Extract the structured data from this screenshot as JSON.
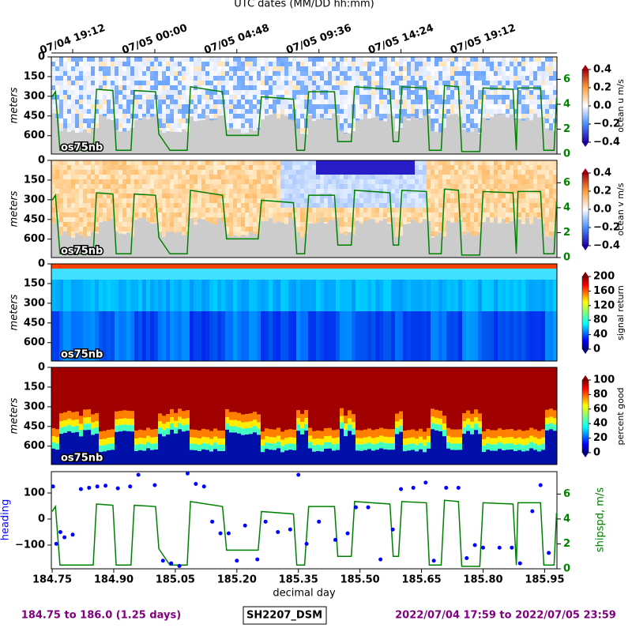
{
  "chart_data": {
    "type": "line",
    "title": "UTC dates (MM/DD hh:mm)",
    "date_ticks": [
      {
        "value": 184.8,
        "label": "07/04 19:12"
      },
      {
        "value": 185.0,
        "label": "07/05 00:00"
      },
      {
        "value": 185.2,
        "label": "07/05 04:48"
      },
      {
        "value": 185.4,
        "label": "07/05 09:36"
      },
      {
        "value": 185.6,
        "label": "07/05 14:24"
      },
      {
        "value": 185.8,
        "label": "07/05 19:12"
      }
    ],
    "xlabel": "decimal day",
    "xlim": [
      184.748,
      185.98
    ],
    "xticks": [
      184.75,
      {
        "value": 184.9,
        "label": "184.90"
      },
      185.05,
      {
        "value": 185.2,
        "label": "185.20"
      },
      185.35,
      {
        "value": 185.5,
        "label": "185.50"
      },
      185.65,
      {
        "value": 185.8,
        "label": "185.80"
      },
      185.95
    ],
    "depth_label": "meters",
    "depth_lim": [
      0,
      740
    ],
    "depth_ticks": [
      0,
      150,
      300,
      450,
      600
    ],
    "speed_lim": [
      0,
      7.8
    ],
    "speed_ticks": [
      0,
      2,
      4,
      6
    ],
    "panels": [
      {
        "label": "os75nb",
        "colorbar_label": "ocean u m/s",
        "cbar_lim": [
          -0.4,
          0.4
        ],
        "cbar_ticks": [
          {
            "value": 0.4,
            "label": "0.4"
          },
          {
            "value": 0.2,
            "label": "0.2"
          },
          {
            "value": 0,
            "label": "0.0"
          },
          {
            "value": -0.2,
            "label": "−0.2"
          },
          {
            "value": -0.4,
            "label": "−0.4"
          }
        ]
      },
      {
        "label": "os75nb",
        "colorbar_label": "ocean v m/s",
        "cbar_lim": [
          -0.4,
          0.4
        ],
        "cbar_ticks": [
          {
            "value": 0.4,
            "label": "0.4"
          },
          {
            "value": 0.2,
            "label": "0.2"
          },
          {
            "value": 0,
            "label": "0.0"
          },
          {
            "value": -0.2,
            "label": "−0.2"
          },
          {
            "value": -0.4,
            "label": "−0.4"
          }
        ]
      },
      {
        "label": "os75nb",
        "colorbar_label": "signal return",
        "cbar_lim": [
          0,
          200
        ],
        "cbar_ticks": [
          0,
          40,
          80,
          120,
          160,
          200
        ]
      },
      {
        "label": "os75nb",
        "colorbar_label": "percent good",
        "cbar_lim": [
          0,
          100
        ],
        "cbar_ticks": [
          0,
          20,
          40,
          60,
          80,
          100
        ]
      }
    ],
    "heading_label": "heading",
    "heading_lim": [
      -191,
      182
    ],
    "heading_ticks": [
      100,
      0,
      {
        "value": -100,
        "label": "−100"
      }
    ],
    "speed_label": "shipspd, m/s",
    "shipspd": {
      "name": "shipspd, m/s",
      "color": "#008000",
      "x": [
        184.75,
        184.758,
        184.769,
        184.85,
        184.858,
        184.898,
        184.906,
        184.942,
        184.95,
        185.002,
        185.01,
        185.037,
        185.079,
        185.087,
        185.165,
        185.175,
        185.252,
        185.26,
        185.338,
        185.346,
        185.365,
        185.375,
        185.438,
        185.446,
        185.479,
        185.487,
        185.573,
        185.581,
        185.594,
        185.602,
        185.662,
        185.669,
        185.698,
        185.706,
        185.74,
        185.748,
        185.792,
        185.8,
        185.873,
        185.881,
        185.885,
        185.94,
        185.948,
        185.973,
        185.979
      ],
      "values": [
        4.6,
        5.0,
        0.3,
        0.3,
        5.2,
        5.1,
        0.3,
        0.3,
        5.1,
        5.0,
        1.6,
        0.3,
        0.3,
        5.4,
        5.0,
        1.5,
        1.5,
        4.6,
        4.4,
        0.3,
        0.3,
        5.0,
        5.0,
        1.0,
        1.0,
        5.4,
        5.2,
        1.0,
        1.0,
        5.4,
        5.3,
        0.3,
        0.3,
        5.5,
        5.4,
        0.2,
        0.2,
        5.3,
        5.2,
        0.3,
        5.3,
        5.3,
        0.3,
        0.3,
        4.5
      ]
    },
    "heading": {
      "name": "heading",
      "color": "#0000ff",
      "x": [
        184.752,
        184.76,
        184.77,
        184.78,
        184.8,
        184.82,
        184.84,
        184.86,
        184.88,
        184.91,
        184.94,
        184.96,
        185.0,
        185.02,
        185.04,
        185.06,
        185.08,
        185.1,
        185.12,
        185.14,
        185.16,
        185.18,
        185.2,
        185.22,
        185.25,
        185.27,
        185.3,
        185.33,
        185.35,
        185.37,
        185.4,
        185.44,
        185.47,
        185.49,
        185.52,
        185.55,
        185.58,
        185.6,
        185.63,
        185.66,
        185.68,
        185.71,
        185.74,
        185.76,
        185.78,
        185.8,
        185.84,
        185.87,
        185.89,
        185.92,
        185.94,
        185.96
      ],
      "values": [
        125,
        -95,
        -50,
        -70,
        -60,
        115,
        120,
        125,
        128,
        118,
        125,
        170,
        130,
        -160,
        -170,
        -180,
        175,
        135,
        125,
        -10,
        -55,
        -55,
        -160,
        -25,
        -155,
        -10,
        -50,
        -40,
        170,
        -95,
        -10,
        -80,
        -55,
        45,
        45,
        -155,
        -40,
        115,
        120,
        140,
        -160,
        120,
        120,
        -150,
        -100,
        -110,
        -110,
        -110,
        -170,
        30,
        130,
        -130
      ]
    },
    "footer_left": "184.75 to 186.0 (1.25 days)",
    "footer_center": "SH2207_DSM",
    "footer_right": "2022/07/04 17:59 to 2022/07/05 23:59"
  }
}
